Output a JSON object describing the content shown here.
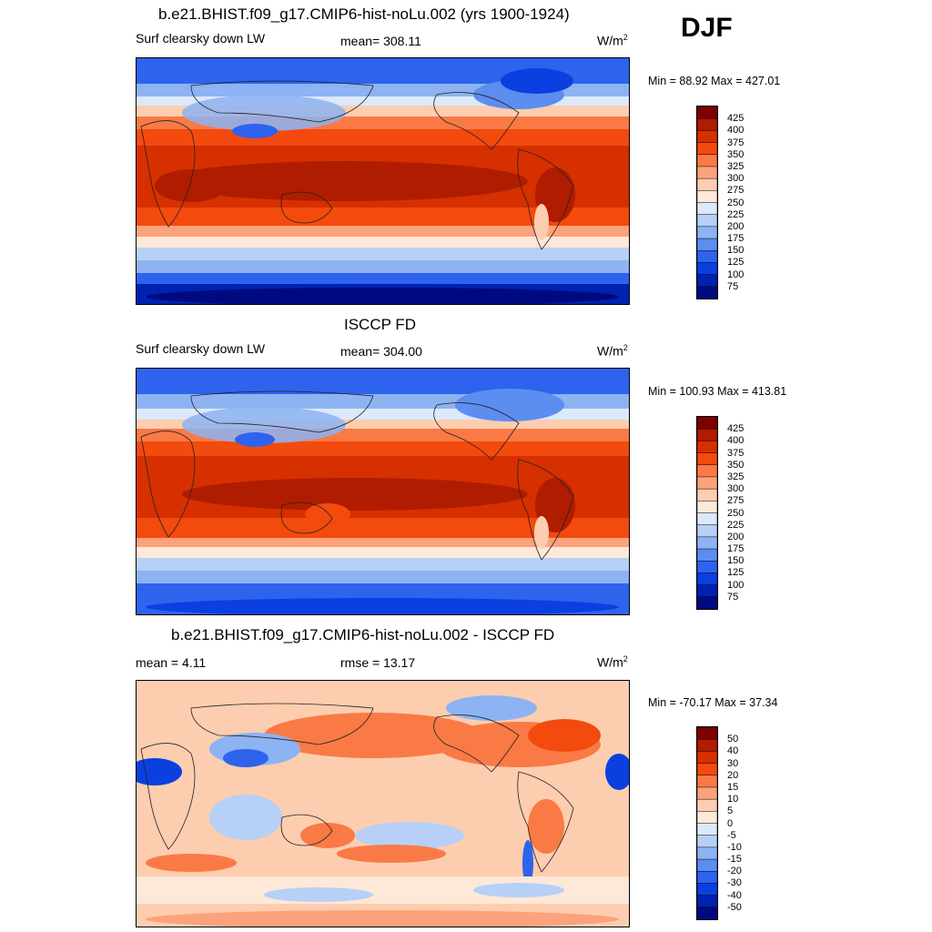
{
  "season": "DJF",
  "units": "W/m",
  "units_exp": "2",
  "panels": [
    {
      "title": "b.e21.BHIST.f09_g17.CMIP6-hist-noLu.002 (yrs 1900-1924)",
      "left_label": "Surf clearsky down LW",
      "center_label": "mean= 308.11",
      "minmax": "Min =  88.92 Max = 427.01",
      "colorbar": {
        "colors": [
          "#7f0000",
          "#b01c00",
          "#d63000",
          "#f34a0e",
          "#f97a45",
          "#fca27c",
          "#fdcdb0",
          "#fee8d8",
          "#dce9fa",
          "#b6d0f7",
          "#8db3f2",
          "#5c8df0",
          "#2e63ee",
          "#0a40e0",
          "#0022b0",
          "#000a80"
        ],
        "labels": [
          "425",
          "400",
          "375",
          "350",
          "325",
          "300",
          "275",
          "250",
          "225",
          "200",
          "175",
          "150",
          "125",
          "100",
          "75"
        ]
      }
    },
    {
      "title": "ISCCP FD",
      "left_label": "Surf clearsky down LW",
      "center_label": "mean= 304.00",
      "minmax": "Min = 100.93 Max = 413.81",
      "colorbar": {
        "colors": [
          "#7f0000",
          "#b01c00",
          "#d63000",
          "#f34a0e",
          "#f97a45",
          "#fca27c",
          "#fdcdb0",
          "#fee8d8",
          "#dce9fa",
          "#b6d0f7",
          "#8db3f2",
          "#5c8df0",
          "#2e63ee",
          "#0a40e0",
          "#0022b0",
          "#000a80"
        ],
        "labels": [
          "425",
          "400",
          "375",
          "350",
          "325",
          "300",
          "275",
          "250",
          "225",
          "200",
          "175",
          "150",
          "125",
          "100",
          "75"
        ]
      }
    },
    {
      "title": "b.e21.BHIST.f09_g17.CMIP6-hist-noLu.002 - ISCCP FD",
      "left_label": "mean =   4.11",
      "center_label": "rmse =  13.17",
      "minmax": "Min = -70.17 Max =  37.34",
      "colorbar": {
        "colors": [
          "#7f0000",
          "#b01c00",
          "#d63000",
          "#f34a0e",
          "#f97a45",
          "#fca27c",
          "#fdcdb0",
          "#fee8d8",
          "#dce9fa",
          "#b6d0f7",
          "#8db3f2",
          "#5c8df0",
          "#2e63ee",
          "#0a40e0",
          "#0022b0",
          "#000a80"
        ],
        "labels": [
          "50",
          "40",
          "30",
          "20",
          "15",
          "10",
          "5",
          "0",
          "-5",
          "-10",
          "-15",
          "-20",
          "-30",
          "-40",
          "-50"
        ]
      }
    }
  ]
}
